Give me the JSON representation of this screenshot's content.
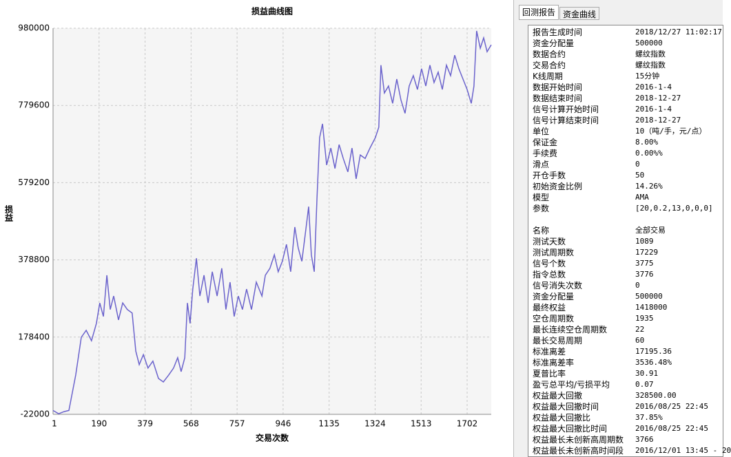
{
  "chart_data": {
    "type": "line",
    "title": "损益曲线图",
    "x_label": "交易次数",
    "y_label": "损益",
    "x": [
      1,
      24,
      46,
      66,
      94,
      117,
      137,
      159,
      179,
      193,
      208,
      222,
      236,
      250,
      270,
      287,
      306,
      326,
      341,
      355,
      372,
      391,
      411,
      434,
      454,
      476,
      496,
      513,
      527,
      542,
      553,
      564,
      575,
      590,
      604,
      621,
      638,
      655,
      675,
      694,
      711,
      728,
      745,
      762,
      779,
      796,
      816,
      836,
      859,
      873,
      892,
      910,
      926,
      943,
      960,
      977,
      994,
      1008,
      1023,
      1037,
      1051,
      1062,
      1074,
      1085,
      1096,
      1108,
      1125,
      1142,
      1159,
      1176,
      1193,
      1212,
      1229,
      1246,
      1263,
      1283,
      1303,
      1325,
      1339,
      1348,
      1362,
      1379,
      1396,
      1413,
      1430,
      1447,
      1464,
      1481,
      1498,
      1515,
      1532,
      1549,
      1566,
      1583,
      1600,
      1617,
      1634,
      1651,
      1668,
      1685,
      1702,
      1719,
      1730,
      1741,
      1756,
      1770,
      1784,
      1801
    ],
    "series": [
      {
        "color": "#6a62cc",
        "values": [
          -12000,
          -20500,
          -15000,
          -12000,
          80000,
          178000,
          196000,
          169000,
          214000,
          267000,
          232000,
          339000,
          250000,
          285000,
          223000,
          267000,
          250000,
          241000,
          142000,
          107000,
          133000,
          98000,
          116000,
          71000,
          62000,
          80000,
          98000,
          125000,
          89000,
          125000,
          267000,
          214000,
          303000,
          383000,
          285000,
          339000,
          267000,
          348000,
          285000,
          357000,
          250000,
          321000,
          232000,
          285000,
          250000,
          303000,
          250000,
          321000,
          285000,
          339000,
          357000,
          392000,
          348000,
          375000,
          419000,
          348000,
          464000,
          410000,
          375000,
          446000,
          517000,
          392000,
          348000,
          535000,
          696000,
          732000,
          625000,
          669000,
          616000,
          678000,
          642000,
          607000,
          669000,
          589000,
          651000,
          642000,
          669000,
          696000,
          723000,
          884000,
          812000,
          830000,
          785000,
          848000,
          794000,
          759000,
          830000,
          857000,
          821000,
          875000,
          830000,
          884000,
          839000,
          866000,
          821000,
          884000,
          857000,
          910000,
          875000,
          848000,
          821000,
          785000,
          830000,
          973000,
          928000,
          955000,
          919000,
          937000
        ]
      }
    ],
    "xlim": [
      1,
      1801
    ],
    "ylim": [
      -22000,
      980000
    ],
    "xticks": [
      1,
      190,
      379,
      568,
      757,
      946,
      1135,
      1324,
      1513,
      1702
    ],
    "yticks": [
      -22000,
      178400,
      378800,
      579200,
      779600,
      980000
    ],
    "grid": true
  },
  "panel": {
    "tabs": [
      "回测报告",
      "资金曲线"
    ],
    "groups": [
      [
        [
          "报告生成时间",
          "2018/12/27 11:02:17"
        ],
        [
          "资金分配量",
          "500000"
        ],
        [
          "数据合约",
          "螺纹指数"
        ],
        [
          "交易合约",
          "螺纹指数"
        ],
        [
          "K线周期",
          "15分钟"
        ],
        [
          "数据开始时间",
          "2016-1-4"
        ],
        [
          "数据结束时间",
          "2018-12-27"
        ],
        [
          "信号计算开始时间",
          "2016-1-4"
        ],
        [
          "信号计算结束时间",
          "2018-12-27"
        ],
        [
          "单位",
          "10（吨/手，元/点）"
        ],
        [
          "保证金",
          "8.00%"
        ],
        [
          "手续费",
          "0.00%%"
        ],
        [
          "滑点",
          "0"
        ],
        [
          "开仓手数",
          "50"
        ],
        [
          "初始资金比例",
          "14.26%"
        ],
        [
          "模型",
          "AMA"
        ],
        [
          "参数",
          "[20,0.2,13,0,0,0]"
        ]
      ],
      [
        [
          "名称",
          "全部交易"
        ],
        [
          "测试天数",
          "1089"
        ],
        [
          "测试周期数",
          "17229"
        ],
        [
          "信号个数",
          "3775"
        ],
        [
          "指令总数",
          "3776"
        ],
        [
          "信号消失次数",
          "0"
        ],
        [
          "资金分配量",
          "500000"
        ],
        [
          "最终权益",
          "1418000"
        ],
        [
          "空仓周期数",
          "1935"
        ],
        [
          "最长连续空仓周期数",
          "22"
        ],
        [
          "最长交易周期",
          "60"
        ],
        [
          "标准离差",
          "17195.36"
        ],
        [
          "标准离差率",
          "3536.48%"
        ],
        [
          "夏普比率",
          "30.91"
        ],
        [
          "盈亏总平均/亏损平均",
          "0.07"
        ],
        [
          "权益最大回撤",
          "328500.00"
        ],
        [
          "权益最大回撤时间",
          "2016/08/25 22:45"
        ],
        [
          "权益最大回撤比",
          "37.85%"
        ],
        [
          "权益最大回撤比时间",
          "2016/08/25 22:45"
        ],
        [
          "权益最长未创新高周期数",
          "3766"
        ],
        [
          "权益最长未创新高时间段",
          "2016/12/01 13:45 - 20"
        ]
      ]
    ]
  }
}
